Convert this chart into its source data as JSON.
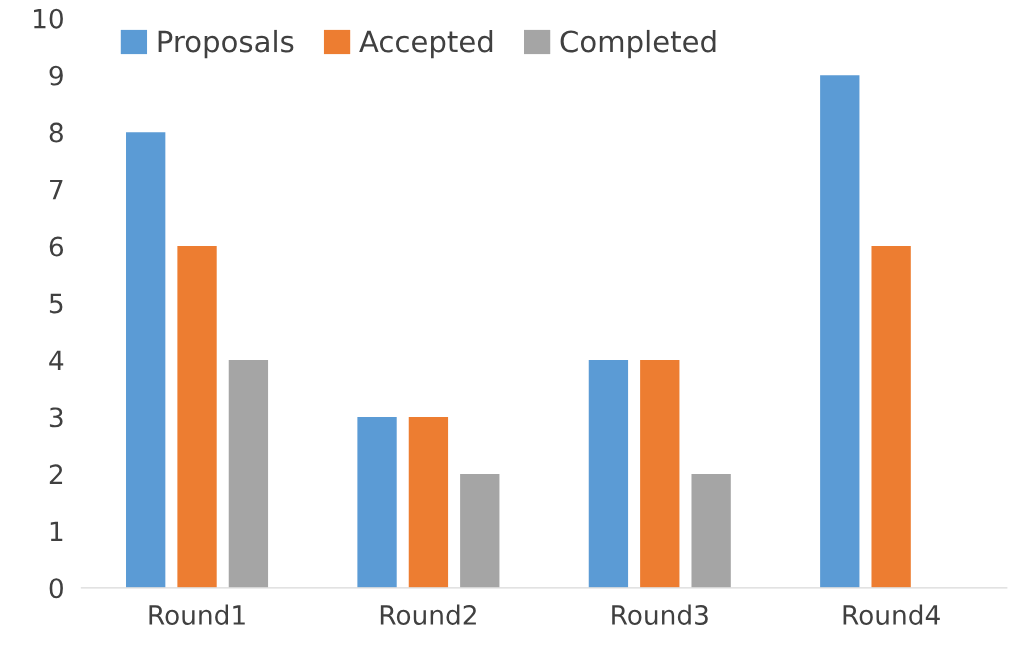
{
  "chart_data": {
    "type": "bar",
    "categories": [
      "Round1",
      "Round2",
      "Round3",
      "Round4"
    ],
    "series": [
      {
        "name": "Proposals",
        "color": "#5b9bd5",
        "values": [
          8,
          3,
          4,
          9
        ]
      },
      {
        "name": "Accepted",
        "color": "#ed7d31",
        "values": [
          6,
          3,
          4,
          6
        ]
      },
      {
        "name": "Completed",
        "color": "#a5a5a5",
        "values": [
          4,
          2,
          2,
          null
        ]
      }
    ],
    "ylim": [
      0,
      10
    ],
    "yticks": [
      0,
      1,
      2,
      3,
      4,
      5,
      6,
      7,
      8,
      9,
      10
    ],
    "grid": false,
    "legend": "top left"
  }
}
